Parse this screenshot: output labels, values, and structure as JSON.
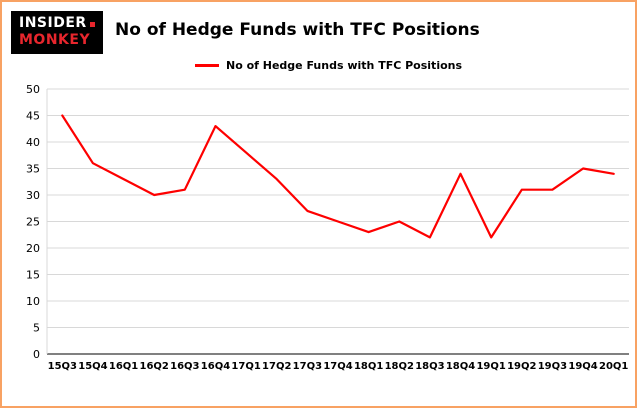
{
  "logo": {
    "line1": "INSIDER",
    "line2": "MONKEY"
  },
  "title": "No of Hedge Funds with TFC Positions",
  "legend": {
    "label": "No of Hedge Funds with TFC Positions",
    "color": "#fe0000"
  },
  "colors": {
    "line": "#fe0000",
    "grid": "#d8d8d8",
    "axis": "#000000",
    "border": "#f8a263",
    "background": "#ffffff"
  },
  "chart_data": {
    "type": "line",
    "title": "No of Hedge Funds with TFC Positions",
    "categories": [
      "15Q3",
      "15Q4",
      "16Q1",
      "16Q2",
      "16Q3",
      "16Q4",
      "17Q1",
      "17Q2",
      "17Q3",
      "17Q4",
      "18Q1",
      "18Q2",
      "18Q3",
      "18Q4",
      "19Q1",
      "19Q2",
      "19Q3",
      "19Q4",
      "20Q1"
    ],
    "values": [
      45,
      36,
      33,
      30,
      31,
      43,
      38,
      33,
      27,
      25,
      23,
      25,
      22,
      34,
      22,
      31,
      31,
      35,
      34
    ],
    "series": [
      {
        "name": "No of Hedge Funds with TFC Positions",
        "values": [
          45,
          36,
          33,
          30,
          31,
          43,
          38,
          33,
          27,
          25,
          23,
          25,
          22,
          34,
          22,
          31,
          31,
          35,
          34
        ]
      }
    ],
    "xlabel": "",
    "ylabel": "",
    "ylim": [
      0,
      50
    ],
    "yticks": [
      0,
      5,
      10,
      15,
      20,
      25,
      30,
      35,
      40,
      45,
      50
    ],
    "grid": true,
    "legend_position": "top-left",
    "line_color": "#fe0000"
  }
}
